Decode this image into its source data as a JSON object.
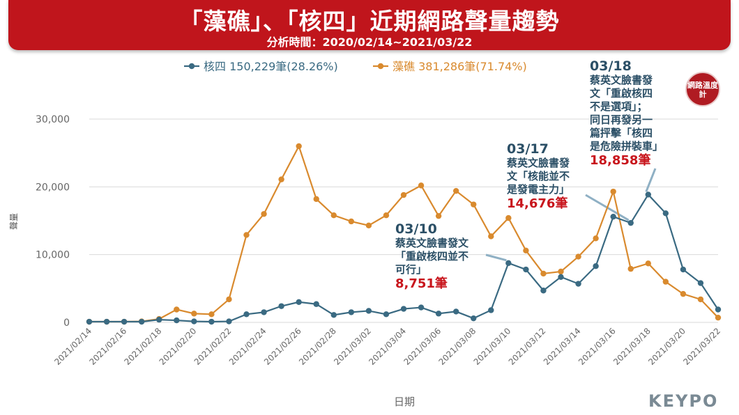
{
  "header": {
    "title": "「藻礁」、「核四」近期網路聲量趨勢",
    "subtitle": "分析時間：2020/02/14~2021/03/22"
  },
  "badge": {
    "text": "網路溫度計"
  },
  "logo": {
    "text": "KEYPO"
  },
  "colors": {
    "series_blue": "#3a6a82",
    "series_orange": "#d98a2e",
    "banner": "#c0151c",
    "annotation_text": "#2b4f66",
    "annotation_count": "#c8151c"
  },
  "chart_data": {
    "type": "line",
    "xlabel": "日期",
    "ylabel": "聲量",
    "ylim": [
      0,
      30000
    ],
    "yticks": [
      0,
      10000,
      20000,
      30000
    ],
    "ytick_labels": [
      "0",
      "10,000",
      "20,000",
      "30,000"
    ],
    "grid": true,
    "legend_placement": "top",
    "x": [
      "2021/02/14",
      "2021/02/15",
      "2021/02/16",
      "2021/02/17",
      "2021/02/18",
      "2021/02/19",
      "2021/02/20",
      "2021/02/21",
      "2021/02/22",
      "2021/02/23",
      "2021/02/24",
      "2021/02/25",
      "2021/02/26",
      "2021/02/27",
      "2021/02/28",
      "2021/03/01",
      "2021/03/02",
      "2021/03/03",
      "2021/03/04",
      "2021/03/05",
      "2021/03/06",
      "2021/03/07",
      "2021/03/08",
      "2021/03/09",
      "2021/03/10",
      "2021/03/11",
      "2021/03/12",
      "2021/03/13",
      "2021/03/14",
      "2021/03/15",
      "2021/03/16",
      "2021/03/17",
      "2021/03/18",
      "2021/03/19",
      "2021/03/20",
      "2021/03/21",
      "2021/03/22"
    ],
    "xtick_labels": [
      "2021/02/14",
      "2021/02/16",
      "2021/02/18",
      "2021/02/20",
      "2021/02/22",
      "2021/02/24",
      "2021/02/26",
      "2021/02/28",
      "2021/03/02",
      "2021/03/04",
      "2021/03/06",
      "2021/03/08",
      "2021/03/10",
      "2021/03/12",
      "2021/03/14",
      "2021/03/16",
      "2021/03/18",
      "2021/03/20",
      "2021/03/22"
    ],
    "series": [
      {
        "name": "核四 150,229筆(28.26%)",
        "color": "#3a6a82",
        "values": [
          100,
          100,
          100,
          100,
          400,
          300,
          150,
          100,
          150,
          1200,
          1500,
          2400,
          3000,
          2700,
          1100,
          1500,
          1700,
          1200,
          2000,
          2200,
          1300,
          1600,
          600,
          1800,
          8751,
          7800,
          4700,
          6700,
          5700,
          8300,
          15600,
          14676,
          18858,
          16100,
          7800,
          5800,
          1900
        ]
      },
      {
        "name": "藻礁 381,286筆(71.74%)",
        "color": "#d98a2e",
        "values": [
          100,
          100,
          100,
          150,
          500,
          1900,
          1300,
          1200,
          3400,
          12900,
          16000,
          21100,
          26000,
          18200,
          15800,
          14900,
          14300,
          15800,
          18800,
          20200,
          15700,
          19400,
          17400,
          12700,
          15400,
          10600,
          7200,
          7500,
          9700,
          12400,
          19300,
          7900,
          8700,
          6000,
          4200,
          3400,
          700
        ]
      }
    ],
    "annotations": [
      {
        "date": "03/10",
        "text": "蔡英文臉書發文\n「重啟核四並不\n可行」",
        "count": "8,751筆",
        "target_index": 24,
        "series": 0
      },
      {
        "date": "03/17",
        "text": "蔡英文臉書發\n文「核能並不\n是發電主力」",
        "count": "14,676筆",
        "target_index": 31,
        "series": 0
      },
      {
        "date": "03/18",
        "text": "蔡英文臉書發\n文「重啟核四\n不是選項」；\n同日再發另一\n篇抨擊「核四\n是危險拼裝車」",
        "count": "18,858筆",
        "target_index": 32,
        "series": 0
      }
    ]
  }
}
